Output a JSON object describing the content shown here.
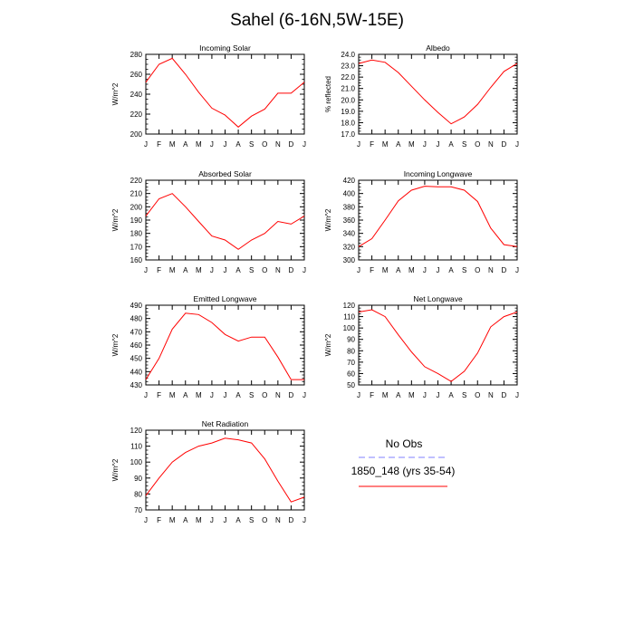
{
  "page": {
    "title": "Sahel (6-16N,5W-15E)"
  },
  "months": [
    "J",
    "F",
    "M",
    "A",
    "M",
    "J",
    "J",
    "A",
    "S",
    "O",
    "N",
    "D",
    "J"
  ],
  "legend": {
    "obs_label": "No Obs",
    "obs_color": "#8080ff",
    "model_label": "1850_148 (yrs 35-54)",
    "model_color": "#ff0000"
  },
  "chart_data": [
    {
      "type": "line",
      "title": "Incoming Solar",
      "ylabel": "W/m^2",
      "ylim": [
        200,
        280
      ],
      "yticks": [
        200,
        220,
        240,
        260,
        280
      ],
      "ytick_labels": [
        "200",
        "220",
        "240",
        "260",
        "280"
      ],
      "x": [
        "J",
        "F",
        "M",
        "A",
        "M",
        "J",
        "J",
        "A",
        "S",
        "O",
        "N",
        "D",
        "J"
      ],
      "series": [
        {
          "values": [
            252,
            270,
            276,
            260,
            242,
            226,
            219,
            207,
            218,
            225,
            241,
            241,
            252
          ]
        }
      ]
    },
    {
      "type": "line",
      "title": "Albedo",
      "ylabel": "% reflected",
      "ylim": [
        17.0,
        24.0
      ],
      "yticks": [
        17,
        18,
        19,
        20,
        21,
        22,
        23,
        24
      ],
      "ytick_labels": [
        "17.0",
        "18.0",
        "19.0",
        "20.0",
        "21.0",
        "22.0",
        "23.0",
        "24.0"
      ],
      "x": [
        "J",
        "F",
        "M",
        "A",
        "M",
        "J",
        "J",
        "A",
        "S",
        "O",
        "N",
        "D",
        "J"
      ],
      "series": [
        {
          "values": [
            23.2,
            23.5,
            23.3,
            22.4,
            21.2,
            20.0,
            18.9,
            17.9,
            18.5,
            19.6,
            21.1,
            22.5,
            23.2
          ]
        }
      ]
    },
    {
      "type": "line",
      "title": "Absorbed Solar",
      "ylabel": "W/m^2",
      "ylim": [
        160,
        220
      ],
      "yticks": [
        160,
        170,
        180,
        190,
        200,
        210,
        220
      ],
      "ytick_labels": [
        "160",
        "170",
        "180",
        "190",
        "200",
        "210",
        "220"
      ],
      "x": [
        "J",
        "F",
        "M",
        "A",
        "M",
        "J",
        "J",
        "A",
        "S",
        "O",
        "N",
        "D",
        "J"
      ],
      "series": [
        {
          "values": [
            193,
            206,
            210,
            200,
            189,
            178,
            175,
            168,
            175,
            180,
            189,
            187,
            193
          ]
        }
      ]
    },
    {
      "type": "line",
      "title": "Incoming Longwave",
      "ylabel": "W/m^2",
      "ylim": [
        300,
        420
      ],
      "yticks": [
        300,
        320,
        340,
        360,
        380,
        400,
        420
      ],
      "ytick_labels": [
        "300",
        "320",
        "340",
        "360",
        "380",
        "400",
        "420"
      ],
      "x": [
        "J",
        "F",
        "M",
        "A",
        "M",
        "J",
        "J",
        "A",
        "S",
        "O",
        "N",
        "D",
        "J"
      ],
      "series": [
        {
          "values": [
            320,
            332,
            360,
            389,
            405,
            411,
            410,
            410,
            405,
            388,
            348,
            323,
            320
          ]
        }
      ]
    },
    {
      "type": "line",
      "title": "Emitted Longwave",
      "ylabel": "W/m^2",
      "ylim": [
        430,
        490
      ],
      "yticks": [
        430,
        440,
        450,
        460,
        470,
        480,
        490
      ],
      "ytick_labels": [
        "430",
        "440",
        "450",
        "460",
        "470",
        "480",
        "490"
      ],
      "x": [
        "J",
        "F",
        "M",
        "A",
        "M",
        "J",
        "J",
        "A",
        "S",
        "O",
        "N",
        "D",
        "J"
      ],
      "series": [
        {
          "values": [
            434,
            450,
            472,
            484,
            483,
            477,
            468,
            463,
            466,
            466,
            451,
            434,
            434
          ]
        }
      ]
    },
    {
      "type": "line",
      "title": "Net Longwave",
      "ylabel": "W/m^2",
      "ylim": [
        50,
        120
      ],
      "yticks": [
        50,
        60,
        70,
        80,
        90,
        100,
        110,
        120
      ],
      "ytick_labels": [
        "50",
        "60",
        "70",
        "80",
        "90",
        "100",
        "110",
        "120"
      ],
      "x": [
        "J",
        "F",
        "M",
        "A",
        "M",
        "J",
        "J",
        "A",
        "S",
        "O",
        "N",
        "D",
        "J"
      ],
      "series": [
        {
          "values": [
            114,
            116,
            110,
            94,
            79,
            66,
            60,
            53,
            62,
            78,
            101,
            110,
            114
          ]
        }
      ]
    },
    {
      "type": "line",
      "title": "Net Radiation",
      "ylabel": "W/m^2",
      "ylim": [
        70,
        120
      ],
      "yticks": [
        70,
        80,
        90,
        100,
        110,
        120
      ],
      "ytick_labels": [
        "70",
        "80",
        "90",
        "100",
        "110",
        "120"
      ],
      "x": [
        "J",
        "F",
        "M",
        "A",
        "M",
        "J",
        "J",
        "A",
        "S",
        "O",
        "N",
        "D",
        "J"
      ],
      "series": [
        {
          "values": [
            79,
            90,
            100,
            106,
            110,
            112,
            115,
            114,
            112,
            102,
            88,
            75,
            78
          ]
        }
      ]
    }
  ]
}
